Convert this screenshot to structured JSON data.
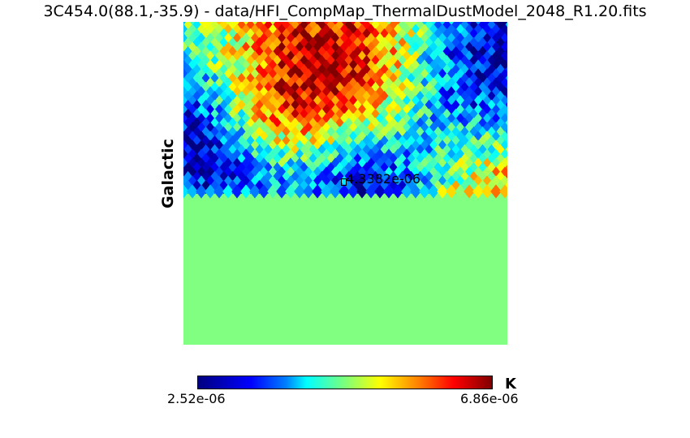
{
  "title": "3C454.0(88.1,-35.9) - data/HFI_CompMap_ThermalDustModel_2048_R1.20.fits",
  "coordinate_system_label": "Galactic",
  "pixel_marker": {
    "value_label": "4.3382e-06"
  },
  "colorbar": {
    "min_label": "2.52e-06",
    "max_label": "6.86e-06",
    "unit": "K",
    "colormap": "jet"
  },
  "colors": {
    "colormap_stops": [
      "#00007f",
      "#0000ff",
      "#0080ff",
      "#00ffff",
      "#7dff7a",
      "#ffff00",
      "#ff8000",
      "#ff0000",
      "#7f0000"
    ]
  }
}
